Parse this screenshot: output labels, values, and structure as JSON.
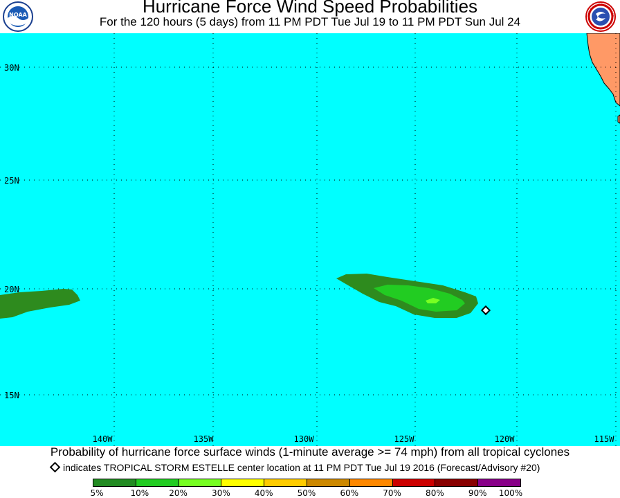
{
  "title": "Hurricane Force Wind Speed Probabilities",
  "subtitle": "For the 120 hours (5 days) from 11 PM PDT Tue Jul 19 to 11 PM PDT Sun Jul 24",
  "logos": {
    "left": {
      "name": "noaa-logo",
      "text": "NOAA"
    },
    "right": {
      "name": "nws-logo",
      "text": "NATIONAL WEATHER SERVICE"
    }
  },
  "map": {
    "ocean_color": "#00FFFF",
    "land_color": "#FF9966",
    "lat_labels": [
      "30N",
      "25N",
      "20N",
      "15N"
    ],
    "lon_labels": [
      "140W",
      "135W",
      "130W",
      "125W",
      "120W",
      "115W"
    ]
  },
  "probability_areas": [
    {
      "name": "west-area",
      "category": "5%-10%",
      "color": "#2E8B1E"
    },
    {
      "name": "east-area-outer",
      "category": "5%-10%",
      "color": "#2E8B1E"
    },
    {
      "name": "east-area-inner",
      "category": "10%-20%",
      "color": "#22CC22"
    },
    {
      "name": "east-area-core",
      "category": "20%-30%",
      "color": "#77FF22"
    }
  ],
  "storm_marker": {
    "name": "TROPICAL STORM ESTELLE",
    "symbol": "diamond"
  },
  "caption": "Probability of hurricane force surface winds (1-minute average >= 74 mph) from all tropical cyclones",
  "note": "indicates TROPICAL STORM ESTELLE center location at 11 PM PDT Tue Jul 19 2016 (Forecast/Advisory #20)",
  "legend": {
    "colors": [
      "#228B22",
      "#22CC22",
      "#77FF22",
      "#FFFF00",
      "#FFCC00",
      "#CC8800",
      "#FF8800",
      "#CC0000",
      "#880000",
      "#880088"
    ],
    "labels": [
      "5%",
      "10%",
      "20%",
      "30%",
      "40%",
      "50%",
      "60%",
      "70%",
      "80%",
      "90%",
      "100%"
    ]
  }
}
